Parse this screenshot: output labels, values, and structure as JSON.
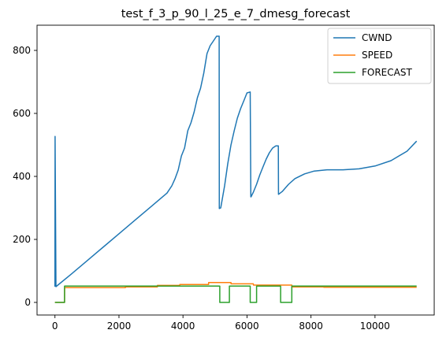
{
  "chart_data": {
    "type": "line",
    "title": "test_f_3_p_90_l_25_e_7_dmesg_forecast",
    "xlabel": "",
    "ylabel": "",
    "xlim": [
      -560,
      11850
    ],
    "ylim": [
      -40,
      880
    ],
    "xticks": [
      0,
      2000,
      4000,
      6000,
      8000,
      10000
    ],
    "yticks": [
      0,
      200,
      400,
      600,
      800
    ],
    "grid": false,
    "legend_position": "top-right",
    "series": [
      {
        "name": "CWND",
        "color": "#1f77b4",
        "x": [
          0,
          5,
          30,
          500,
          1000,
          1500,
          2000,
          2500,
          3000,
          3500,
          3650,
          3750,
          3850,
          3950,
          4050,
          4150,
          4250,
          4350,
          4450,
          4550,
          4650,
          4750,
          4850,
          4950,
          5050,
          5130,
          5135,
          5180,
          5300,
          5400,
          5500,
          5600,
          5700,
          5800,
          5900,
          6000,
          6100,
          6120,
          6125,
          6200,
          6300,
          6400,
          6500,
          6600,
          6700,
          6800,
          6900,
          6980,
          6985,
          7100,
          7300,
          7500,
          7800,
          8100,
          8500,
          9000,
          9500,
          10000,
          10500,
          11000,
          11300
        ],
        "y": [
          50,
          527,
          50,
          89,
          132,
          175,
          218,
          261,
          304,
          347,
          370,
          392,
          420,
          465,
          490,
          545,
          570,
          605,
          650,
          680,
          728,
          790,
          815,
          830,
          845,
          845,
          298,
          300,
          370,
          440,
          500,
          545,
          585,
          615,
          640,
          665,
          668,
          335,
          335,
          350,
          375,
          405,
          430,
          455,
          475,
          490,
          497,
          497,
          343,
          352,
          375,
          393,
          408,
          417,
          421,
          421,
          424,
          433,
          450,
          480,
          512
        ]
      },
      {
        "name": "SPEED",
        "color": "#ff7f0e",
        "x": [
          0,
          300,
          301,
          2200,
          2201,
          3200,
          3201,
          3900,
          3901,
          4800,
          4801,
          5500,
          5501,
          6200,
          6201,
          7400,
          7401,
          8400,
          8401,
          11300
        ],
        "y": [
          0,
          0,
          47,
          47,
          49,
          49,
          54,
          54,
          57,
          57,
          63,
          63,
          59,
          59,
          55,
          55,
          49,
          49,
          48,
          48
        ]
      },
      {
        "name": "FORECAST",
        "color": "#2ca02c",
        "x": [
          0,
          300,
          300,
          5150,
          5150,
          5450,
          5450,
          6100,
          6100,
          6300,
          6300,
          7050,
          7050,
          7400,
          7400,
          11300
        ],
        "y": [
          0,
          0,
          52,
          52,
          0,
          0,
          52,
          52,
          0,
          0,
          52,
          52,
          0,
          0,
          52,
          52
        ]
      }
    ]
  }
}
